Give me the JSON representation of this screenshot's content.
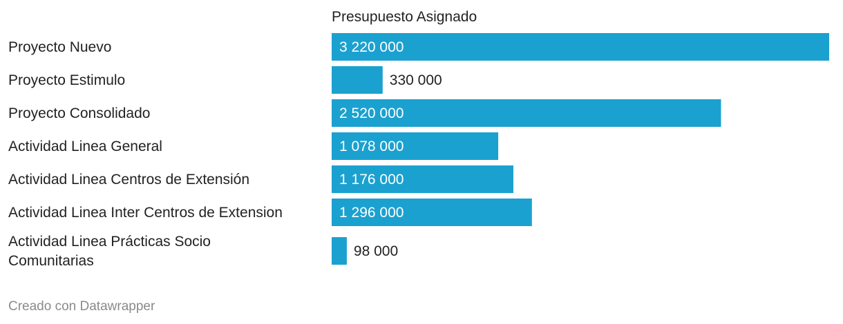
{
  "chart_data": {
    "type": "bar",
    "orientation": "horizontal",
    "title": "",
    "column_header": "Presupuesto Asignado",
    "categories": [
      "Proyecto Nuevo",
      "Proyecto Estimulo",
      "Proyecto Consolidado",
      "Actividad Linea General",
      "Actividad Linea Centros de Extensión",
      "Actividad Linea Inter Centros de Extension",
      "Actividad Linea Prácticas Socio Comunitarias"
    ],
    "category_lines": [
      [
        "Proyecto Nuevo"
      ],
      [
        "Proyecto Estimulo"
      ],
      [
        "Proyecto Consolidado"
      ],
      [
        "Actividad Linea General"
      ],
      [
        "Actividad Linea Centros de Extensión"
      ],
      [
        "Actividad Linea Inter Centros de Extension"
      ],
      [
        "Actividad Linea Prácticas Socio",
        "Comunitarias"
      ]
    ],
    "values": [
      3220000,
      330000,
      2520000,
      1078000,
      1176000,
      1296000,
      98000
    ],
    "value_labels": [
      "3 220 000",
      "330 000",
      "2 520 000",
      "1 078 000",
      "1 176 000",
      "1 296 000",
      "98 000"
    ],
    "xlim": [
      0,
      3220000
    ],
    "bar_color": "#1ba1cf"
  },
  "footer": {
    "credit": "Creado con Datawrapper"
  }
}
